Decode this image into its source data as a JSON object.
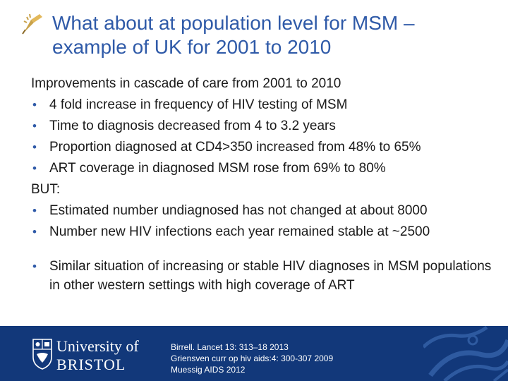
{
  "title": {
    "line1": "What about at population level for MSM –",
    "line2": "example of UK for 2001 to 2010"
  },
  "body": {
    "intro": "Improvements in cascade of care from 2001 to 2010",
    "improvements": [
      "4 fold increase in frequency of HIV testing of MSM",
      "Time to diagnosis decreased from 4 to 3.2 years",
      "Proportion diagnosed at CD4>350 increased from 48% to 65%",
      "ART coverage in diagnosed MSM rose from 69% to 80%"
    ],
    "but_label": "BUT:",
    "concerns": [
      "Estimated number undiagnosed has not changed at about 8000",
      "Number new HIV infections each year remained stable at ~2500"
    ],
    "similar": "Similar situation of increasing or stable HIV diagnoses in MSM populations in other western settings with high coverage of ART",
    "bullet_glyph": "•"
  },
  "footer": {
    "university_line1": "University of",
    "university_line2": "BRISTOL",
    "references": [
      "Birrell. Lancet 13: 313–18 2013",
      "Griensven curr op hiv aids:4: 300-307 2009",
      "Muessig AIDS 2012"
    ]
  },
  "colors": {
    "title": "#2f5aa8",
    "footer_bg": "#12387a",
    "bullet": "#2f5aa8"
  },
  "icons": {
    "title_marker": "pen-nib-icon",
    "crest": "university-crest-icon"
  }
}
